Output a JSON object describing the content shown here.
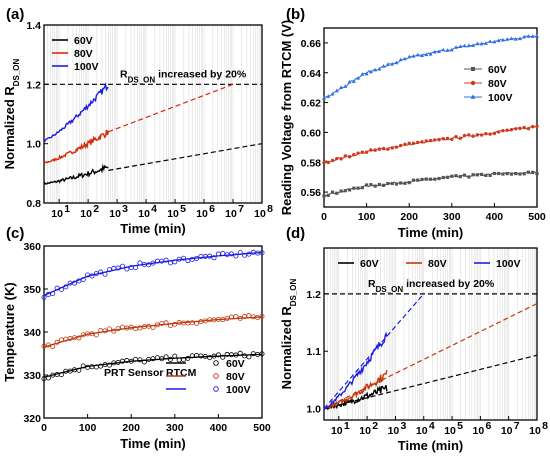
{
  "chart_data": [
    {
      "panel": "(a)",
      "type": "scatter",
      "xscale": "log",
      "xlabel": "Time (min)",
      "ylabel": "Normalized R",
      "ylabel_sub": "DS_ON",
      "xlim": [
        3,
        100000000
      ],
      "ylim": [
        0.8,
        1.4
      ],
      "xticks": [
        10,
        100,
        1000,
        10000,
        100000,
        1000000,
        10000000,
        100000000
      ],
      "xticklabels": [
        "10",
        "10",
        "10",
        "10",
        "10",
        "10",
        "10",
        "10"
      ],
      "xtickexp": [
        "1",
        "2",
        "3",
        "4",
        "5",
        "6",
        "7",
        "8"
      ],
      "yticks": [
        0.8,
        1.0,
        1.2,
        1.4
      ],
      "yticklabels": [
        "0.8",
        "1.0",
        "1.2",
        "1.4"
      ],
      "hline": 1.2,
      "annotation": "R",
      "annotation_sub": "DS_ON",
      "annotation_rest": " increased by 20%",
      "legend": [
        "60V",
        "80V",
        "100V"
      ],
      "series": [
        {
          "name": "60V",
          "color": "#000000",
          "x_start": 3,
          "x_end": 500,
          "y_start": 0.865,
          "y_end": 0.92,
          "fit": {
            "x1": 500,
            "y1": 0.91,
            "x2": 100000000,
            "y2": 1.0
          }
        },
        {
          "name": "80V",
          "color": "#d62a0a",
          "x_start": 3,
          "x_end": 500,
          "y_start": 0.935,
          "y_end": 1.04,
          "fit": {
            "x1": 500,
            "y1": 1.04,
            "x2": 10000000,
            "y2": 1.2
          }
        },
        {
          "name": "100V",
          "color": "#1d1de0",
          "x_start": 3,
          "x_end": 500,
          "y_start": 1.01,
          "y_end": 1.2,
          "fit": null
        }
      ]
    },
    {
      "panel": "(b)",
      "type": "line",
      "xlabel": "Time (min)",
      "ylabel": "Reading Voltage from RTCM (V)",
      "xlim": [
        0,
        500
      ],
      "ylim": [
        0.55,
        0.67
      ],
      "xticks": [
        0,
        100,
        200,
        300,
        400,
        500
      ],
      "xticklabels": [
        "0",
        "100",
        "200",
        "300",
        "400",
        "500"
      ],
      "yticks": [
        0.56,
        0.58,
        0.6,
        0.62,
        0.64,
        0.66
      ],
      "yticklabels": [
        "0.56",
        "0.58",
        "0.60",
        "0.62",
        "0.64",
        "0.66"
      ],
      "legend": [
        "60V",
        "80V",
        "100V"
      ],
      "series": [
        {
          "name": "60V",
          "color": "#555555",
          "marker": "square",
          "values_at_0_100_200_300_400_500": [
            0.558,
            0.564,
            0.567,
            0.57,
            0.572,
            0.573
          ]
        },
        {
          "name": "80V",
          "color": "#cc3b1e",
          "marker": "circle",
          "values_at_0_100_200_300_400_500": [
            0.58,
            0.587,
            0.592,
            0.596,
            0.6,
            0.604
          ]
        },
        {
          "name": "100V",
          "color": "#2d6fe0",
          "marker": "triangle",
          "values_at_0_100_200_300_400_500": [
            0.623,
            0.64,
            0.65,
            0.656,
            0.661,
            0.665
          ]
        }
      ]
    },
    {
      "panel": "(c)",
      "type": "scatter",
      "xlabel": "Time (min)",
      "ylabel": "Temperature (K)",
      "xlim": [
        0,
        500
      ],
      "ylim": [
        320,
        360
      ],
      "xticks": [
        0,
        100,
        200,
        300,
        400,
        500
      ],
      "xticklabels": [
        "0",
        "100",
        "200",
        "300",
        "400",
        "500"
      ],
      "yticks": [
        320,
        330,
        340,
        350,
        360
      ],
      "yticklabels": [
        "320",
        "330",
        "340",
        "350",
        "360"
      ],
      "legend_headers": [
        "PRT Sensor",
        "RTCM"
      ],
      "legend": [
        "60V",
        "80V",
        "100V"
      ],
      "series": [
        {
          "name": "60V",
          "color": "#000000",
          "values_at_0_100_200_300_400_500": [
            329.5,
            332.0,
            333.2,
            333.9,
            334.4,
            334.8
          ]
        },
        {
          "name": "80V",
          "color": "#c0390f",
          "values_at_0_100_200_300_400_500": [
            336.5,
            339.5,
            341.0,
            342.0,
            342.9,
            343.5
          ]
        },
        {
          "name": "100V",
          "color": "#1d1de0",
          "values_at_0_100_200_300_400_500": [
            348.5,
            353.0,
            355.3,
            356.7,
            357.7,
            358.5
          ]
        }
      ]
    },
    {
      "panel": "(d)",
      "type": "scatter",
      "xscale": "log",
      "xlabel": "Time (min)",
      "ylabel": "Normalized R",
      "ylabel_sub": "DS_ON",
      "xlim": [
        3,
        100000000
      ],
      "ylim": [
        0.98,
        1.28
      ],
      "xticks": [
        10,
        100,
        1000,
        10000,
        100000,
        1000000,
        10000000,
        100000000
      ],
      "xticklabels": [
        "10",
        "10",
        "10",
        "10",
        "10",
        "10",
        "10",
        "10"
      ],
      "xtickexp": [
        "1",
        "2",
        "3",
        "4",
        "5",
        "6",
        "7",
        "8"
      ],
      "yticks": [
        1.0,
        1.1,
        1.2
      ],
      "yticklabels": [
        "1.0",
        "1.1",
        "1.2"
      ],
      "hline": 1.2,
      "annotation": "R",
      "annotation_sub": "DS_ON",
      "annotation_rest": " increased by 20%",
      "legend": [
        "60V",
        "80V",
        "100V"
      ],
      "series": [
        {
          "name": "60V",
          "color": "#000000",
          "x_start": 3,
          "x_end": 500,
          "y_start": 1.0,
          "y_end": 1.035,
          "fit": {
            "x1": 3,
            "y1": 1.0,
            "x2": 100000000,
            "y2": 1.093
          }
        },
        {
          "name": "80V",
          "color": "#c0390f",
          "x_start": 3,
          "x_end": 500,
          "y_start": 1.0,
          "y_end": 1.06,
          "fit": {
            "x1": 3,
            "y1": 1.0,
            "x2": 100000000,
            "y2": 1.183
          }
        },
        {
          "name": "100V",
          "color": "#1d1de0",
          "x_start": 3,
          "x_end": 500,
          "y_start": 1.0,
          "y_end": 1.13,
          "fit": {
            "x1": 3,
            "y1": 1.0,
            "x2": 10000,
            "y2": 1.2
          }
        }
      ]
    }
  ]
}
